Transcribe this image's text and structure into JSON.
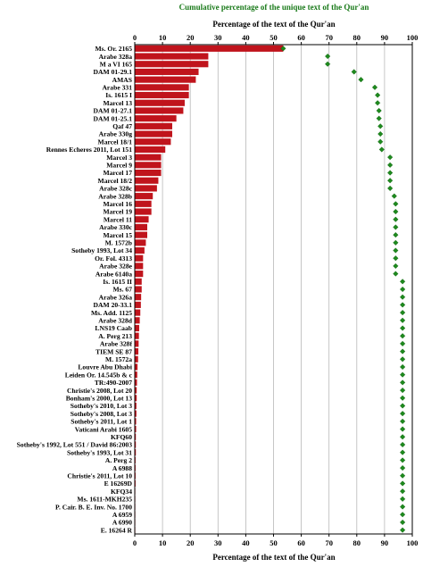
{
  "chart_data": {
    "type": "bar",
    "title": "Cumulative percentage of the unique text of the Qur'an",
    "xlabel_top": "Percentage of the text of the Qur'an",
    "xlabel_bottom": "Percentage of the text of the Qur'an",
    "xlim": [
      0,
      100
    ],
    "xticks": [
      0,
      10,
      20,
      30,
      40,
      50,
      60,
      70,
      80,
      90,
      100
    ],
    "grid": true,
    "colors": {
      "bar": "#c0141c",
      "point": "#1e8a1e",
      "title": "#1a7a1a",
      "grid": "#b8b8b8"
    },
    "categories": [
      "Ms. Or. 2165",
      "Arabe 328a",
      "M a VI 165",
      "DAM 01-29.1",
      "AMAS",
      "Arabe 331",
      "Is. 1615 I",
      "Marcel 13",
      "DAM 01-27.1",
      "DAM 01-25.1",
      "Qaf 47",
      "Arabe 330g",
      "Marcel 18/1",
      "Rennes Echeres 2011, Lot 151",
      "Marcel 3",
      "Marcel 9",
      "Marcel 17",
      "Marcel 18/2",
      "Arabe 328c",
      "Arabe 328b",
      "Marcel 16",
      "Marcel 19",
      "Marcel 11",
      "Arabe 330c",
      "Marcel 15",
      "M. 1572b",
      "Sotheby 1993, Lot 34",
      "Or. Fol. 4313",
      "Arabe 328e",
      "Arabe 6140a",
      "Is. 1615 II",
      "Ms. 67",
      "Arabe 326a",
      "DAM 20-33.1",
      "Ms. Add. 1125",
      "Arabe 328d",
      "LNS19 Caab",
      "A. Perg 213",
      "Arabe 328f",
      "TIEM SE 87",
      "M. 1572a",
      "Louvre Abu Dhabi",
      "Leiden Or. 14.545b & c",
      "TR:490-2007",
      "Christie's 2008, Lot 20",
      "Bonham's 2000, Lot 13",
      "Sotheby's 2010, Lot 3",
      "Sotheby's 2008, Lot 3",
      "Sotheby's 2011, Lot 1",
      "Vaticani Arabi 1605",
      "KFQ60",
      "Sotheby's 1992, Lot 551 / David 86:2003",
      "Sotheby's 1993, Lot 31",
      "A. Perg 2",
      "A 6988",
      "Christie's 2011, Lot 10",
      "E 16269D",
      "KFQ34",
      "Ms. 1611-MKH235",
      "P. Cair. B. E. Inv. No. 1700",
      "A 6959",
      "A 6990",
      "E. 16264 R"
    ],
    "series": [
      {
        "type": "bar",
        "values": [
          53.5,
          26.5,
          26.5,
          23.0,
          22.0,
          19.5,
          19.5,
          18.0,
          17.5,
          15.0,
          13.5,
          13.5,
          13.0,
          11.0,
          9.5,
          9.5,
          9.5,
          8.5,
          8.0,
          6.5,
          6.0,
          6.0,
          5.0,
          4.5,
          4.5,
          4.0,
          3.5,
          3.0,
          3.0,
          3.0,
          2.5,
          2.5,
          2.3,
          2.2,
          2.0,
          1.8,
          1.6,
          1.5,
          1.4,
          1.3,
          1.2,
          1.0,
          0.9,
          0.8,
          0.7,
          0.7,
          0.6,
          0.6,
          0.5,
          0.5,
          0.4,
          0.4,
          0.4,
          0.3,
          0.3,
          0.3,
          0.3,
          0.2,
          0.2,
          0.2,
          0.2,
          0.1,
          0.1
        ]
      },
      {
        "type": "scatter",
        "marker": "diamond",
        "values": [
          53.5,
          69.5,
          69.5,
          79.0,
          81.5,
          86.5,
          87.5,
          87.5,
          88.0,
          88.0,
          88.5,
          88.5,
          88.5,
          89.0,
          92.0,
          92.0,
          92.0,
          92.0,
          92.0,
          93.5,
          94.0,
          94.0,
          94.0,
          94.0,
          94.0,
          94.0,
          94.0,
          94.0,
          94.0,
          94.0,
          96.5,
          96.5,
          96.5,
          96.5,
          96.5,
          96.5,
          96.5,
          96.5,
          96.5,
          96.5,
          96.5,
          96.5,
          96.5,
          96.5,
          96.5,
          96.5,
          96.5,
          96.5,
          96.5,
          96.5,
          96.5,
          96.5,
          96.5,
          96.5,
          96.5,
          96.5,
          96.5,
          96.5,
          96.5,
          96.5,
          96.5,
          96.5,
          96.5
        ]
      }
    ]
  }
}
